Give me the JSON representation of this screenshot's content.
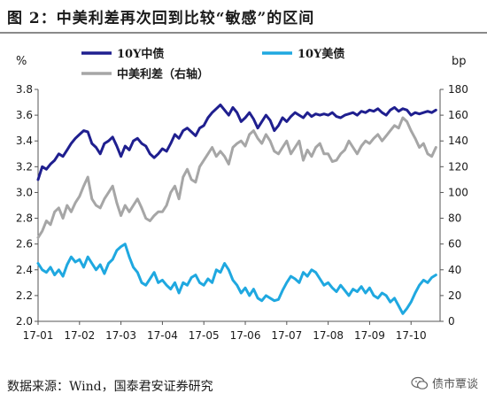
{
  "title": "图 2：中美利差再次回到比较“敏感”的区间",
  "footer": "数据来源：Wind，国泰君安证券研究",
  "watermark": {
    "text": "债市覃谈",
    "icon": "wechat-icon"
  },
  "chart_data": {
    "type": "line",
    "left_unit": "%",
    "right_unit": "bp",
    "left_ylim": [
      2.0,
      3.8
    ],
    "left_ticks": [
      "3.8",
      "3.6",
      "3.4",
      "3.2",
      "3.0",
      "2.8",
      "2.6",
      "2.4",
      "2.2",
      "2.0"
    ],
    "right_ylim": [
      0,
      180
    ],
    "right_ticks": [
      "180",
      "160",
      "140",
      "120",
      "100",
      "80",
      "60",
      "40",
      "20",
      "0"
    ],
    "x_ticks": [
      "17-01",
      "17-02",
      "17-03",
      "17-04",
      "17-05",
      "17-06",
      "17-07",
      "17-08",
      "17-09",
      "17-10"
    ],
    "legend_position": "top",
    "series": [
      {
        "name": "10Y中债",
        "axis": "left",
        "color": "#1f1f8f",
        "x": [
          0,
          0.1,
          0.2,
          0.3,
          0.4,
          0.5,
          0.6,
          0.7,
          0.8,
          0.9,
          1.0,
          1.1,
          1.2,
          1.3,
          1.4,
          1.5,
          1.6,
          1.7,
          1.8,
          1.9,
          2.0,
          2.1,
          2.2,
          2.3,
          2.4,
          2.5,
          2.6,
          2.7,
          2.8,
          2.9,
          3.0,
          3.1,
          3.2,
          3.3,
          3.4,
          3.5,
          3.6,
          3.7,
          3.8,
          3.9,
          4.0,
          4.1,
          4.2,
          4.3,
          4.4,
          4.5,
          4.6,
          4.7,
          4.8,
          4.9,
          5.0,
          5.1,
          5.2,
          5.3,
          5.4,
          5.5,
          5.6,
          5.7,
          5.8,
          5.9,
          6.0,
          6.1,
          6.2,
          6.3,
          6.4,
          6.5,
          6.6,
          6.7,
          6.8,
          6.9,
          7.0,
          7.1,
          7.2,
          7.3,
          7.4,
          7.5,
          7.6,
          7.7,
          7.8,
          7.9,
          8.0,
          8.1,
          8.2,
          8.3,
          8.4,
          8.5,
          8.6,
          8.7,
          8.8,
          8.9,
          9.0,
          9.1,
          9.2,
          9.3,
          9.4,
          9.5,
          9.6
        ],
        "values": [
          3.1,
          3.2,
          3.18,
          3.22,
          3.25,
          3.3,
          3.28,
          3.33,
          3.38,
          3.42,
          3.45,
          3.48,
          3.47,
          3.38,
          3.35,
          3.3,
          3.38,
          3.4,
          3.43,
          3.36,
          3.28,
          3.36,
          3.33,
          3.4,
          3.42,
          3.38,
          3.36,
          3.3,
          3.27,
          3.3,
          3.34,
          3.32,
          3.38,
          3.45,
          3.42,
          3.48,
          3.5,
          3.47,
          3.44,
          3.5,
          3.52,
          3.58,
          3.62,
          3.65,
          3.68,
          3.64,
          3.6,
          3.66,
          3.62,
          3.55,
          3.58,
          3.62,
          3.57,
          3.5,
          3.55,
          3.6,
          3.56,
          3.48,
          3.52,
          3.58,
          3.55,
          3.59,
          3.62,
          3.6,
          3.58,
          3.62,
          3.59,
          3.61,
          3.6,
          3.61,
          3.6,
          3.62,
          3.59,
          3.58,
          3.6,
          3.61,
          3.62,
          3.6,
          3.63,
          3.62,
          3.64,
          3.63,
          3.65,
          3.62,
          3.6,
          3.64,
          3.66,
          3.63,
          3.65,
          3.64,
          3.6,
          3.62,
          3.61,
          3.62,
          3.63,
          3.62,
          3.64
        ]
      },
      {
        "name": "10Y美债",
        "axis": "left",
        "color": "#1fa8e0",
        "x": [
          0,
          0.1,
          0.2,
          0.3,
          0.4,
          0.5,
          0.6,
          0.7,
          0.8,
          0.9,
          1.0,
          1.1,
          1.2,
          1.3,
          1.4,
          1.5,
          1.6,
          1.7,
          1.8,
          1.9,
          2.0,
          2.1,
          2.2,
          2.3,
          2.4,
          2.5,
          2.6,
          2.7,
          2.8,
          2.9,
          3.0,
          3.1,
          3.2,
          3.3,
          3.4,
          3.5,
          3.6,
          3.7,
          3.8,
          3.9,
          4.0,
          4.1,
          4.2,
          4.3,
          4.4,
          4.5,
          4.6,
          4.7,
          4.8,
          4.9,
          5.0,
          5.1,
          5.2,
          5.3,
          5.4,
          5.5,
          5.6,
          5.7,
          5.8,
          5.9,
          6.0,
          6.1,
          6.2,
          6.3,
          6.4,
          6.5,
          6.6,
          6.7,
          6.8,
          6.9,
          7.0,
          7.1,
          7.2,
          7.3,
          7.4,
          7.5,
          7.6,
          7.7,
          7.8,
          7.9,
          8.0,
          8.1,
          8.2,
          8.3,
          8.4,
          8.5,
          8.6,
          8.7,
          8.8,
          8.9,
          9.0,
          9.1,
          9.2,
          9.3,
          9.4,
          9.5,
          9.6
        ],
        "values": [
          2.45,
          2.4,
          2.38,
          2.42,
          2.36,
          2.4,
          2.35,
          2.44,
          2.5,
          2.46,
          2.48,
          2.42,
          2.5,
          2.45,
          2.4,
          2.44,
          2.37,
          2.45,
          2.48,
          2.55,
          2.58,
          2.6,
          2.5,
          2.42,
          2.38,
          2.3,
          2.28,
          2.33,
          2.38,
          2.3,
          2.32,
          2.28,
          2.25,
          2.3,
          2.22,
          2.3,
          2.28,
          2.34,
          2.36,
          2.3,
          2.28,
          2.33,
          2.3,
          2.4,
          2.38,
          2.45,
          2.4,
          2.32,
          2.28,
          2.22,
          2.26,
          2.2,
          2.25,
          2.18,
          2.16,
          2.2,
          2.18,
          2.16,
          2.17,
          2.24,
          2.3,
          2.35,
          2.33,
          2.3,
          2.38,
          2.35,
          2.4,
          2.38,
          2.33,
          2.28,
          2.3,
          2.26,
          2.23,
          2.28,
          2.24,
          2.2,
          2.25,
          2.23,
          2.27,
          2.22,
          2.26,
          2.2,
          2.18,
          2.22,
          2.2,
          2.15,
          2.18,
          2.12,
          2.06,
          2.1,
          2.15,
          2.22,
          2.28,
          2.32,
          2.3,
          2.34,
          2.36
        ]
      },
      {
        "name": "中美利差（右轴）",
        "axis": "right",
        "color": "#a6a6a6",
        "x": [
          0,
          0.1,
          0.2,
          0.3,
          0.4,
          0.5,
          0.6,
          0.7,
          0.8,
          0.9,
          1.0,
          1.1,
          1.2,
          1.3,
          1.4,
          1.5,
          1.6,
          1.7,
          1.8,
          1.9,
          2.0,
          2.1,
          2.2,
          2.3,
          2.4,
          2.5,
          2.6,
          2.7,
          2.8,
          2.9,
          3.0,
          3.1,
          3.2,
          3.3,
          3.4,
          3.5,
          3.6,
          3.7,
          3.8,
          3.9,
          4.0,
          4.1,
          4.2,
          4.3,
          4.4,
          4.5,
          4.6,
          4.7,
          4.8,
          4.9,
          5.0,
          5.1,
          5.2,
          5.3,
          5.4,
          5.5,
          5.6,
          5.7,
          5.8,
          5.9,
          6.0,
          6.1,
          6.2,
          6.3,
          6.4,
          6.5,
          6.6,
          6.7,
          6.8,
          6.9,
          7.0,
          7.1,
          7.2,
          7.3,
          7.4,
          7.5,
          7.6,
          7.7,
          7.8,
          7.9,
          8.0,
          8.1,
          8.2,
          8.3,
          8.4,
          8.5,
          8.6,
          8.7,
          8.8,
          8.9,
          9.0,
          9.1,
          9.2,
          9.3,
          9.4,
          9.5,
          9.6
        ],
        "values": [
          65,
          70,
          78,
          75,
          85,
          88,
          80,
          90,
          85,
          92,
          97,
          105,
          112,
          95,
          90,
          88,
          95,
          100,
          105,
          92,
          82,
          90,
          85,
          90,
          95,
          88,
          80,
          78,
          82,
          85,
          85,
          90,
          100,
          105,
          95,
          112,
          118,
          110,
          108,
          120,
          125,
          130,
          135,
          128,
          132,
          128,
          122,
          135,
          138,
          140,
          136,
          145,
          148,
          142,
          138,
          145,
          140,
          132,
          130,
          135,
          140,
          130,
          135,
          140,
          125,
          133,
          128,
          135,
          138,
          130,
          130,
          124,
          125,
          130,
          133,
          140,
          135,
          130,
          136,
          140,
          138,
          142,
          145,
          140,
          144,
          148,
          152,
          150,
          158,
          155,
          148,
          142,
          135,
          138,
          130,
          128,
          135
        ]
      }
    ]
  }
}
